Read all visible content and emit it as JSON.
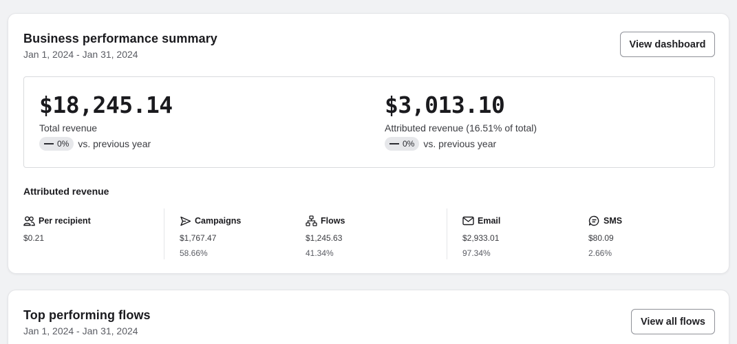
{
  "summary": {
    "title": "Business performance summary",
    "date_range": "Jan 1, 2024 - Jan 31, 2024",
    "view_button": "View dashboard",
    "total": {
      "value": "$18,245.14",
      "label": "Total revenue",
      "change": "0%",
      "comparison": "vs. previous year"
    },
    "attributed": {
      "value": "$3,013.10",
      "label": "Attributed revenue (16.51% of total)",
      "change": "0%",
      "comparison": "vs. previous year"
    }
  },
  "attributed_revenue": {
    "heading": "Attributed revenue",
    "per_recipient": {
      "label": "Per recipient",
      "icon": "users-icon",
      "value": "$0.21"
    },
    "campaigns": {
      "label": "Campaigns",
      "icon": "send-icon",
      "value": "$1,767.47",
      "percent": "58.66%"
    },
    "flows": {
      "label": "Flows",
      "icon": "flow-icon",
      "value": "$1,245.63",
      "percent": "41.34%"
    },
    "email": {
      "label": "Email",
      "icon": "mail-icon",
      "value": "$2,933.01",
      "percent": "97.34%"
    },
    "sms": {
      "label": "SMS",
      "icon": "sms-icon",
      "value": "$80.09",
      "percent": "2.66%"
    }
  },
  "top_flows": {
    "title": "Top performing flows",
    "date_range": "Jan 1, 2024 - Jan 31, 2024",
    "view_button": "View all flows"
  },
  "colors": {
    "background": "#f1f2f4",
    "card": "#ffffff",
    "pill": "#e6e7ea",
    "text": "#1f1f23"
  }
}
